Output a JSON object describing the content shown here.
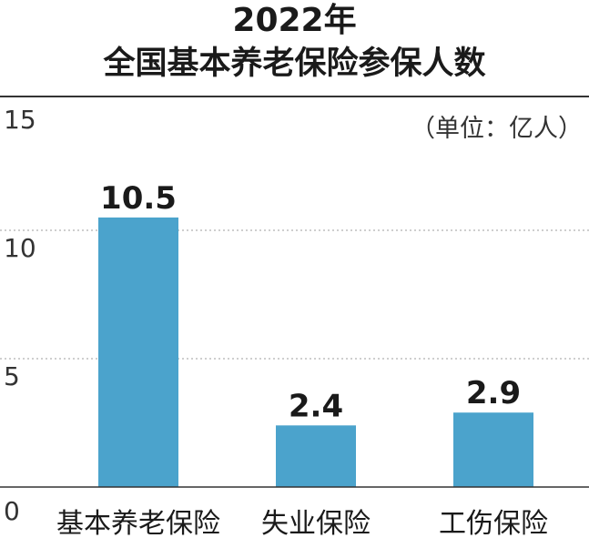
{
  "title_line1": "2022年",
  "title_line2": "全国基本养老保险参保人数",
  "unit_note": "（单位：亿人）",
  "colors": {
    "bar": "#4ba3cc",
    "top_rule": "#333333",
    "grid": "#bdbdbd",
    "axis": "#333333",
    "text": "#1a1a1a",
    "tick_text": "#333333"
  },
  "chart_data": {
    "type": "bar",
    "title": "2022年 全国基本养老保险参保人数",
    "unit": "（单位：亿人）",
    "categories": [
      "基本养老保险",
      "失业保险",
      "工伤保险"
    ],
    "values": [
      10.5,
      2.4,
      2.9
    ],
    "value_labels": [
      "10.5",
      "2.4",
      "2.9"
    ],
    "yticks": [
      "0",
      "5",
      "10",
      "15"
    ],
    "ylim": [
      0,
      15
    ],
    "grid": true,
    "grid_style": "dotted",
    "legend": "none"
  }
}
